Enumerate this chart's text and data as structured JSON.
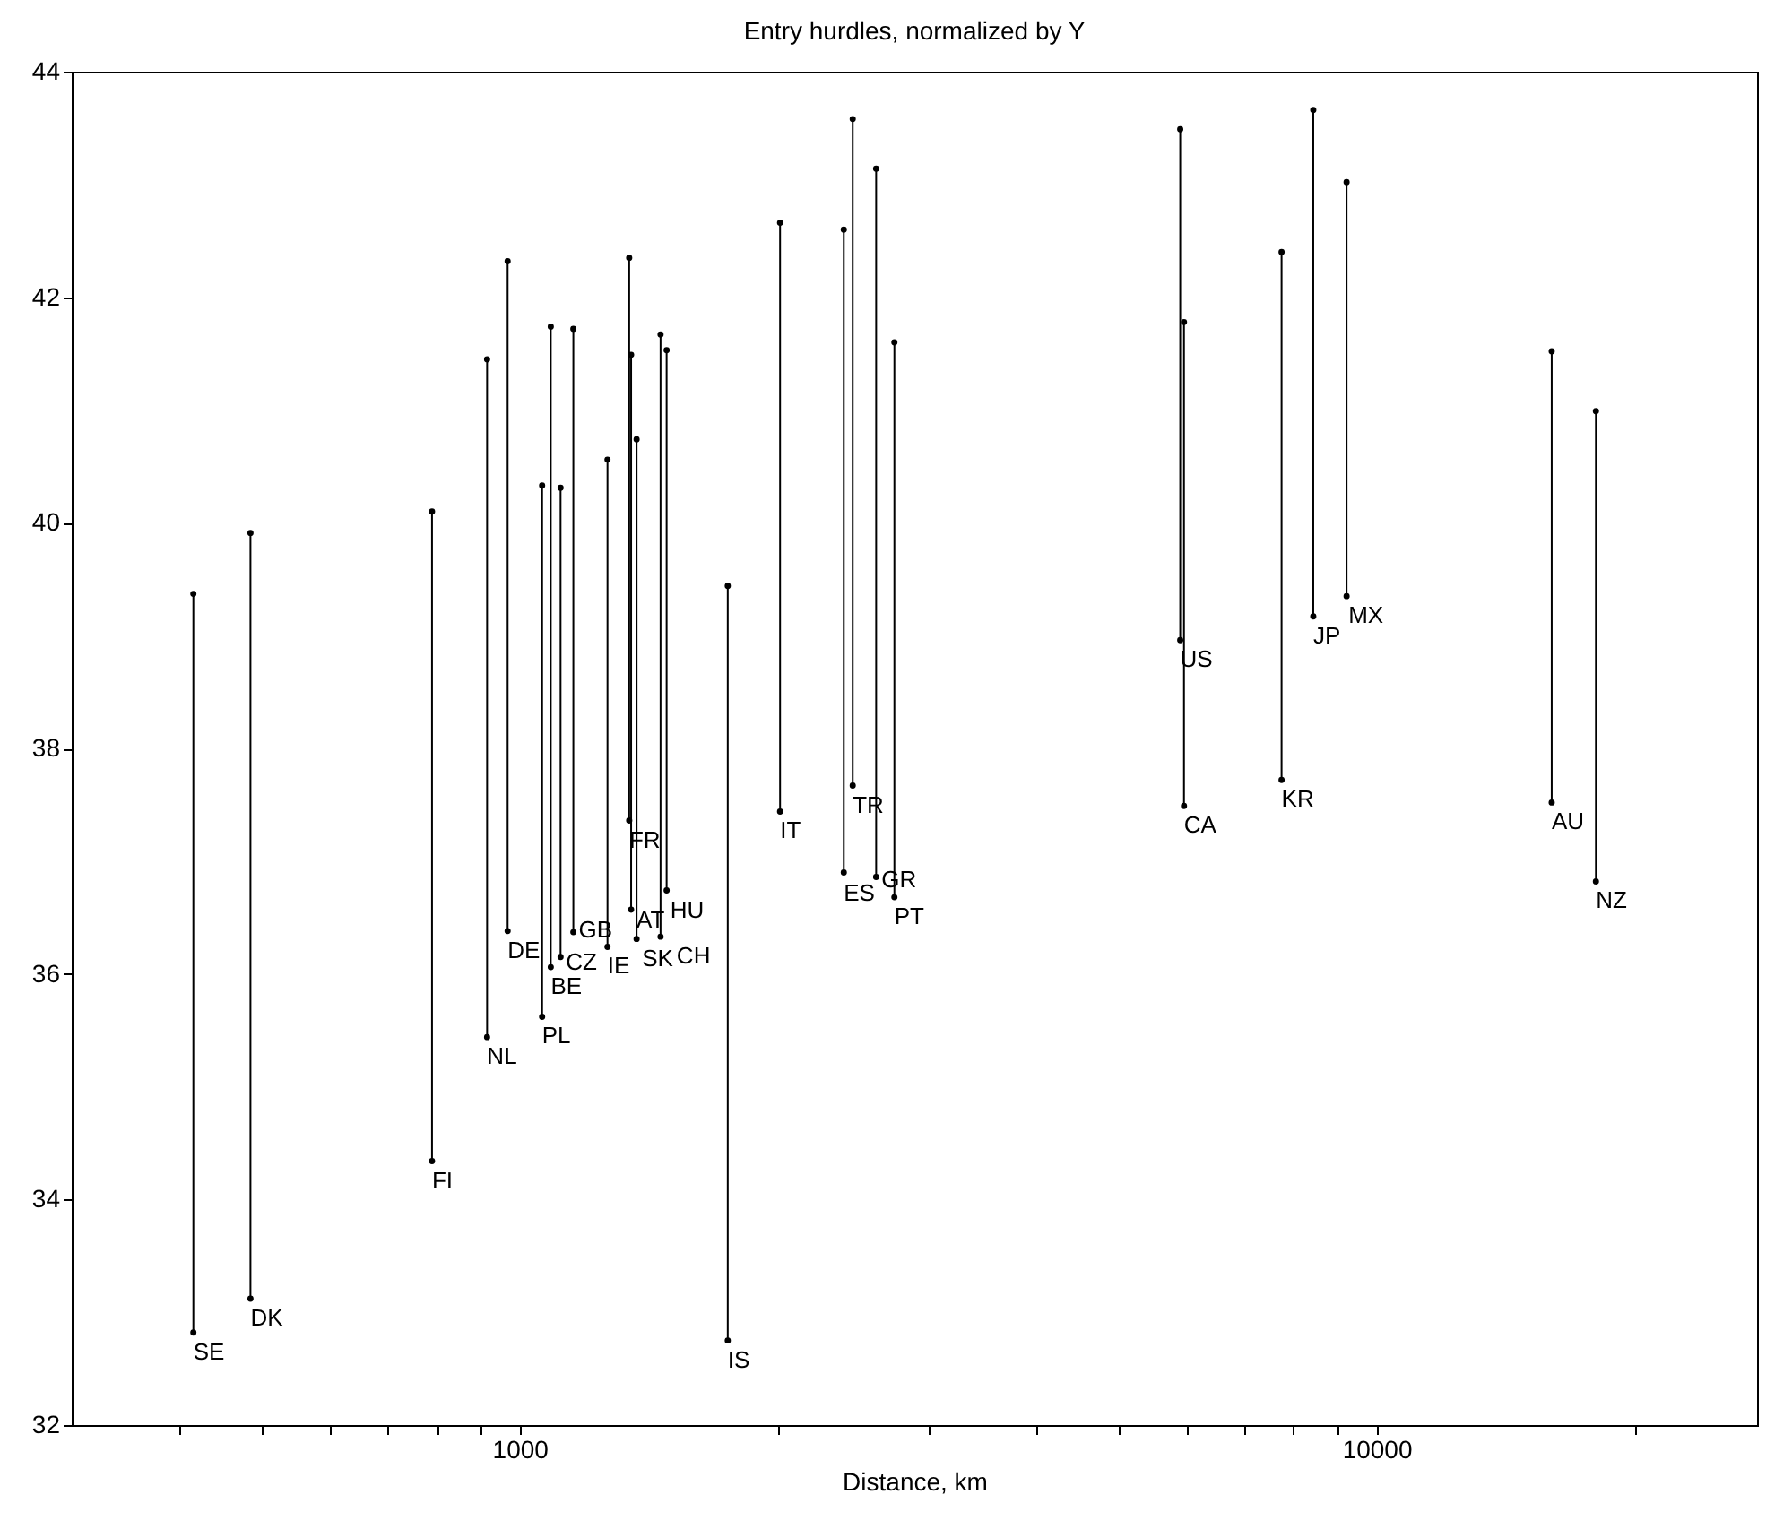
{
  "chart_data": {
    "type": "line",
    "title": "Entry hurdles, normalized by Y",
    "xlabel": "Distance, km",
    "log": "x",
    "marker": "circle",
    "line_style": "solid",
    "grid": false,
    "xlim": [
      300,
      27800
    ],
    "ylim": [
      32,
      44
    ],
    "xticks": [
      {
        "value": 400,
        "label": null
      },
      {
        "value": 500,
        "label": null
      },
      {
        "value": 600,
        "label": null
      },
      {
        "value": 700,
        "label": null
      },
      {
        "value": 800,
        "label": null
      },
      {
        "value": 900,
        "label": null
      },
      1000,
      {
        "value": 2000,
        "label": null
      },
      {
        "value": 3000,
        "label": null
      },
      {
        "value": 4000,
        "label": null
      },
      {
        "value": 5000,
        "label": null
      },
      {
        "value": 6000,
        "label": null
      },
      {
        "value": 7000,
        "label": null
      },
      {
        "value": 8000,
        "label": null
      },
      {
        "value": 9000,
        "label": null
      },
      10000,
      {
        "value": 20000,
        "label": null
      }
    ],
    "yticks": [
      32,
      34,
      36,
      38,
      40,
      42,
      44
    ],
    "series": [
      {
        "name": "SE",
        "color": "#000000",
        "x": [
          416,
          416
        ],
        "values": [
          32.82,
          39.37
        ]
      },
      {
        "name": "DK",
        "color": "#000000",
        "x": [
          485,
          485
        ],
        "values": [
          33.12,
          39.91
        ]
      },
      {
        "name": "FI",
        "color": "#000000",
        "x": [
          790,
          790
        ],
        "values": [
          34.34,
          40.1
        ]
      },
      {
        "name": "NL",
        "color": "#000000",
        "x": [
          916,
          916
        ],
        "values": [
          35.44,
          41.45
        ]
      },
      {
        "name": "DE",
        "color": "#000000",
        "x": [
          968,
          968
        ],
        "values": [
          36.38,
          42.32
        ]
      },
      {
        "name": "PL",
        "color": "#000000",
        "x": [
          1062,
          1062
        ],
        "values": [
          35.62,
          40.33
        ]
      },
      {
        "name": "BE",
        "color": "#000000",
        "x": [
          1087,
          1087
        ],
        "values": [
          36.06,
          41.74
        ]
      },
      {
        "name": "CZ",
        "color": "#000000",
        "x": [
          1116,
          1116
        ],
        "values": [
          36.15,
          40.31
        ]
      },
      {
        "name": "GB",
        "color": "#000000",
        "x": [
          1155,
          1155
        ],
        "values": [
          36.37,
          41.72
        ]
      },
      {
        "name": "IE",
        "color": "#000000",
        "x": [
          1266,
          1266
        ],
        "values": [
          36.24,
          40.56
        ]
      },
      {
        "name": "FR",
        "color": "#000000",
        "x": [
          1342,
          1342
        ],
        "values": [
          37.36,
          42.35
        ]
      },
      {
        "name": "AT",
        "color": "#000000",
        "x": [
          1349,
          1349
        ],
        "values": [
          36.57,
          41.49
        ]
      },
      {
        "name": "SK",
        "color": "#000000",
        "x": [
          1369,
          1369
        ],
        "values": [
          36.31,
          40.74
        ]
      },
      {
        "name": "CH",
        "color": "#000000",
        "x": [
          1460,
          1460
        ],
        "values": [
          36.33,
          41.67
        ]
      },
      {
        "name": "HU",
        "color": "#000000",
        "x": [
          1484,
          1484
        ],
        "values": [
          36.74,
          41.53
        ]
      },
      {
        "name": "IS",
        "color": "#000000",
        "x": [
          1749,
          1749
        ],
        "values": [
          32.75,
          39.44
        ]
      },
      {
        "name": "IT",
        "color": "#000000",
        "x": [
          2013,
          2013
        ],
        "values": [
          37.44,
          42.66
        ]
      },
      {
        "name": "ES",
        "color": "#000000",
        "x": [
          2389,
          2389
        ],
        "values": [
          36.9,
          42.6
        ]
      },
      {
        "name": "TR",
        "color": "#000000",
        "x": [
          2447,
          2447
        ],
        "values": [
          37.67,
          43.58
        ]
      },
      {
        "name": "GR",
        "color": "#000000",
        "x": [
          2606,
          2606
        ],
        "values": [
          36.86,
          43.14
        ]
      },
      {
        "name": "PT",
        "color": "#000000",
        "x": [
          2737,
          2737
        ],
        "values": [
          36.68,
          41.6
        ]
      },
      {
        "name": "US",
        "color": "#000000",
        "x": [
          5900,
          5900
        ],
        "values": [
          38.96,
          43.49
        ]
      },
      {
        "name": "CA",
        "color": "#000000",
        "x": [
          5960,
          5960
        ],
        "values": [
          37.49,
          41.78
        ]
      },
      {
        "name": "KR",
        "color": "#000000",
        "x": [
          7747,
          7747
        ],
        "values": [
          37.72,
          42.4
        ]
      },
      {
        "name": "JP",
        "color": "#000000",
        "x": [
          8436,
          8436
        ],
        "values": [
          39.17,
          43.66
        ]
      },
      {
        "name": "MX",
        "color": "#000000",
        "x": [
          9226,
          9226
        ],
        "values": [
          39.35,
          43.02
        ]
      },
      {
        "name": "AU",
        "color": "#000000",
        "x": [
          16010,
          16010
        ],
        "values": [
          37.52,
          41.52
        ]
      },
      {
        "name": "NZ",
        "color": "#000000",
        "x": [
          18030,
          18030
        ],
        "values": [
          36.82,
          40.99
        ]
      }
    ]
  }
}
